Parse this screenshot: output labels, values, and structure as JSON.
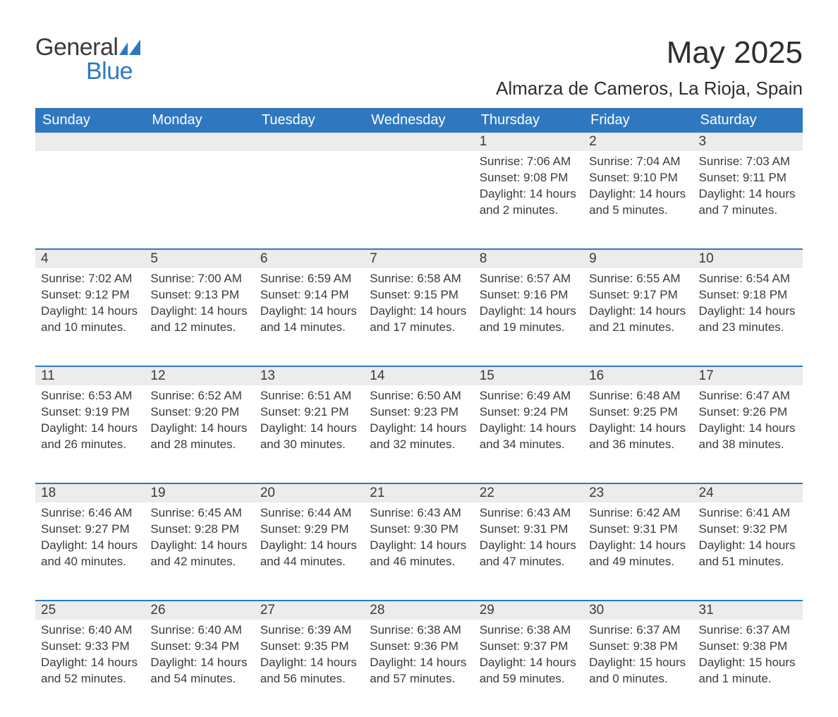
{
  "logo": {
    "general": "General",
    "blue": "Blue",
    "triangle_color": "#2f78c0"
  },
  "header": {
    "month_title": "May 2025",
    "location": "Almarza de Cameros, La Rioja, Spain"
  },
  "theme": {
    "accent": "#2f78c0",
    "daynum_bg": "#ececec",
    "text": "#3a3a3a",
    "header_font_size": 20,
    "cell_font_size": 17,
    "title_font_size": 44,
    "location_font_size": 26
  },
  "calendar": {
    "days_of_week": [
      "Sunday",
      "Monday",
      "Tuesday",
      "Wednesday",
      "Thursday",
      "Friday",
      "Saturday"
    ],
    "weeks": [
      [
        null,
        null,
        null,
        null,
        {
          "n": "1",
          "sunrise": "Sunrise: 7:06 AM",
          "sunset": "Sunset: 9:08 PM",
          "daylight": "Daylight: 14 hours and 2 minutes."
        },
        {
          "n": "2",
          "sunrise": "Sunrise: 7:04 AM",
          "sunset": "Sunset: 9:10 PM",
          "daylight": "Daylight: 14 hours and 5 minutes."
        },
        {
          "n": "3",
          "sunrise": "Sunrise: 7:03 AM",
          "sunset": "Sunset: 9:11 PM",
          "daylight": "Daylight: 14 hours and 7 minutes."
        }
      ],
      [
        {
          "n": "4",
          "sunrise": "Sunrise: 7:02 AM",
          "sunset": "Sunset: 9:12 PM",
          "daylight": "Daylight: 14 hours and 10 minutes."
        },
        {
          "n": "5",
          "sunrise": "Sunrise: 7:00 AM",
          "sunset": "Sunset: 9:13 PM",
          "daylight": "Daylight: 14 hours and 12 minutes."
        },
        {
          "n": "6",
          "sunrise": "Sunrise: 6:59 AM",
          "sunset": "Sunset: 9:14 PM",
          "daylight": "Daylight: 14 hours and 14 minutes."
        },
        {
          "n": "7",
          "sunrise": "Sunrise: 6:58 AM",
          "sunset": "Sunset: 9:15 PM",
          "daylight": "Daylight: 14 hours and 17 minutes."
        },
        {
          "n": "8",
          "sunrise": "Sunrise: 6:57 AM",
          "sunset": "Sunset: 9:16 PM",
          "daylight": "Daylight: 14 hours and 19 minutes."
        },
        {
          "n": "9",
          "sunrise": "Sunrise: 6:55 AM",
          "sunset": "Sunset: 9:17 PM",
          "daylight": "Daylight: 14 hours and 21 minutes."
        },
        {
          "n": "10",
          "sunrise": "Sunrise: 6:54 AM",
          "sunset": "Sunset: 9:18 PM",
          "daylight": "Daylight: 14 hours and 23 minutes."
        }
      ],
      [
        {
          "n": "11",
          "sunrise": "Sunrise: 6:53 AM",
          "sunset": "Sunset: 9:19 PM",
          "daylight": "Daylight: 14 hours and 26 minutes."
        },
        {
          "n": "12",
          "sunrise": "Sunrise: 6:52 AM",
          "sunset": "Sunset: 9:20 PM",
          "daylight": "Daylight: 14 hours and 28 minutes."
        },
        {
          "n": "13",
          "sunrise": "Sunrise: 6:51 AM",
          "sunset": "Sunset: 9:21 PM",
          "daylight": "Daylight: 14 hours and 30 minutes."
        },
        {
          "n": "14",
          "sunrise": "Sunrise: 6:50 AM",
          "sunset": "Sunset: 9:23 PM",
          "daylight": "Daylight: 14 hours and 32 minutes."
        },
        {
          "n": "15",
          "sunrise": "Sunrise: 6:49 AM",
          "sunset": "Sunset: 9:24 PM",
          "daylight": "Daylight: 14 hours and 34 minutes."
        },
        {
          "n": "16",
          "sunrise": "Sunrise: 6:48 AM",
          "sunset": "Sunset: 9:25 PM",
          "daylight": "Daylight: 14 hours and 36 minutes."
        },
        {
          "n": "17",
          "sunrise": "Sunrise: 6:47 AM",
          "sunset": "Sunset: 9:26 PM",
          "daylight": "Daylight: 14 hours and 38 minutes."
        }
      ],
      [
        {
          "n": "18",
          "sunrise": "Sunrise: 6:46 AM",
          "sunset": "Sunset: 9:27 PM",
          "daylight": "Daylight: 14 hours and 40 minutes."
        },
        {
          "n": "19",
          "sunrise": "Sunrise: 6:45 AM",
          "sunset": "Sunset: 9:28 PM",
          "daylight": "Daylight: 14 hours and 42 minutes."
        },
        {
          "n": "20",
          "sunrise": "Sunrise: 6:44 AM",
          "sunset": "Sunset: 9:29 PM",
          "daylight": "Daylight: 14 hours and 44 minutes."
        },
        {
          "n": "21",
          "sunrise": "Sunrise: 6:43 AM",
          "sunset": "Sunset: 9:30 PM",
          "daylight": "Daylight: 14 hours and 46 minutes."
        },
        {
          "n": "22",
          "sunrise": "Sunrise: 6:43 AM",
          "sunset": "Sunset: 9:31 PM",
          "daylight": "Daylight: 14 hours and 47 minutes."
        },
        {
          "n": "23",
          "sunrise": "Sunrise: 6:42 AM",
          "sunset": "Sunset: 9:31 PM",
          "daylight": "Daylight: 14 hours and 49 minutes."
        },
        {
          "n": "24",
          "sunrise": "Sunrise: 6:41 AM",
          "sunset": "Sunset: 9:32 PM",
          "daylight": "Daylight: 14 hours and 51 minutes."
        }
      ],
      [
        {
          "n": "25",
          "sunrise": "Sunrise: 6:40 AM",
          "sunset": "Sunset: 9:33 PM",
          "daylight": "Daylight: 14 hours and 52 minutes."
        },
        {
          "n": "26",
          "sunrise": "Sunrise: 6:40 AM",
          "sunset": "Sunset: 9:34 PM",
          "daylight": "Daylight: 14 hours and 54 minutes."
        },
        {
          "n": "27",
          "sunrise": "Sunrise: 6:39 AM",
          "sunset": "Sunset: 9:35 PM",
          "daylight": "Daylight: 14 hours and 56 minutes."
        },
        {
          "n": "28",
          "sunrise": "Sunrise: 6:38 AM",
          "sunset": "Sunset: 9:36 PM",
          "daylight": "Daylight: 14 hours and 57 minutes."
        },
        {
          "n": "29",
          "sunrise": "Sunrise: 6:38 AM",
          "sunset": "Sunset: 9:37 PM",
          "daylight": "Daylight: 14 hours and 59 minutes."
        },
        {
          "n": "30",
          "sunrise": "Sunrise: 6:37 AM",
          "sunset": "Sunset: 9:38 PM",
          "daylight": "Daylight: 15 hours and 0 minutes."
        },
        {
          "n": "31",
          "sunrise": "Sunrise: 6:37 AM",
          "sunset": "Sunset: 9:38 PM",
          "daylight": "Daylight: 15 hours and 1 minute."
        }
      ]
    ]
  }
}
